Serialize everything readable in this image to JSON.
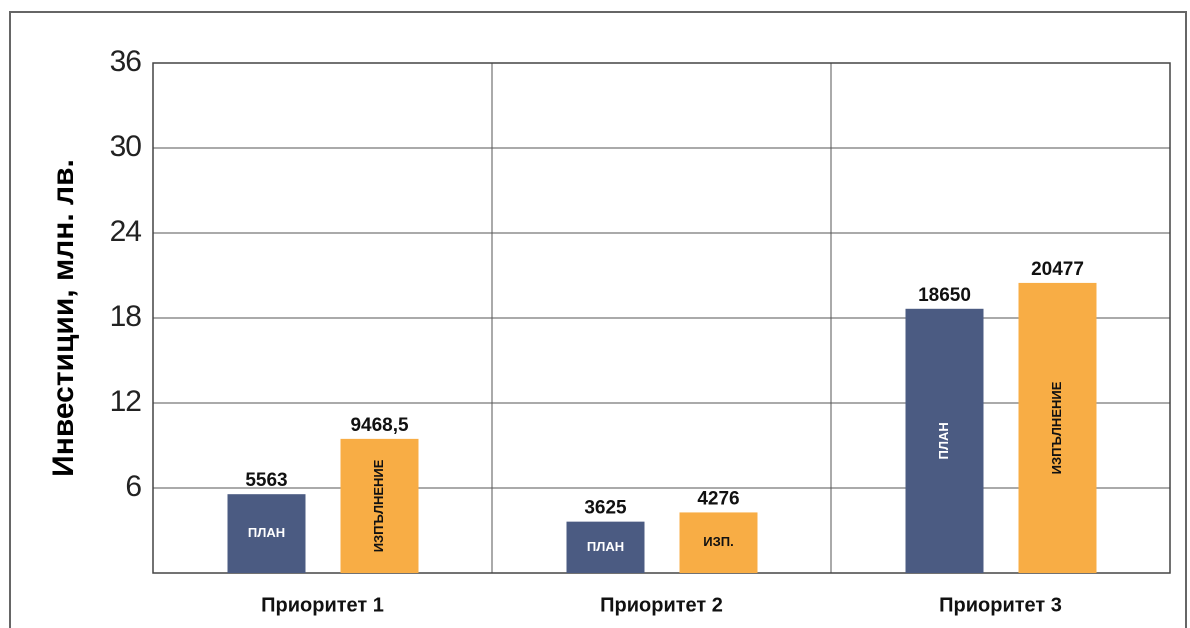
{
  "chart_data": {
    "type": "bar",
    "y_label": "Инвестиции, млн. лв.",
    "categories": [
      "Приоритет 1",
      "Приоритет 2",
      "Приоритет 3"
    ],
    "series": [
      {
        "color": "#4b5b82",
        "values": [
          5.563,
          3.625,
          18.65
        ],
        "value_labels": [
          "5563",
          "3625",
          "18650"
        ],
        "inner_labels": [
          "ПЛАН",
          "ПЛАН",
          "ПЛАН"
        ]
      },
      {
        "color": "#f8ad45",
        "values": [
          9.4685,
          4.276,
          20.477
        ],
        "value_labels": [
          "9468,5",
          "4276",
          "20477"
        ],
        "inner_labels": [
          "ИЗПЪЛНЕНИЕ",
          "ИЗП.",
          "ИЗПЪЛНЕНИЕ"
        ]
      }
    ],
    "ylim": [
      0,
      36
    ],
    "yticks": [
      6,
      12,
      18,
      24,
      30,
      36
    ],
    "grid": true
  }
}
